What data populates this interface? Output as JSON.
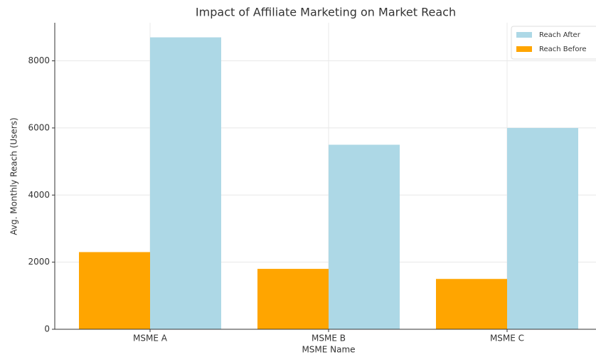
{
  "chart_data": {
    "type": "bar",
    "title": "Impact of Affiliate Marketing on Market Reach",
    "x_label": "MSME Name",
    "y_label": "Avg. Monthly Reach (Users)",
    "categories": [
      "MSME A",
      "MSME B",
      "MSME C"
    ],
    "series": [
      {
        "name": "Reach After",
        "color": "#add8e6",
        "values": [
          8700,
          5500,
          6000
        ]
      },
      {
        "name": "Reach Before",
        "color": "#ffa500",
        "values": [
          2300,
          1800,
          1500
        ]
      }
    ],
    "ylim": [
      0,
      9135
    ],
    "yticks": [
      0,
      2000,
      4000,
      6000,
      8000
    ],
    "grid": true,
    "legend": "upper right"
  }
}
